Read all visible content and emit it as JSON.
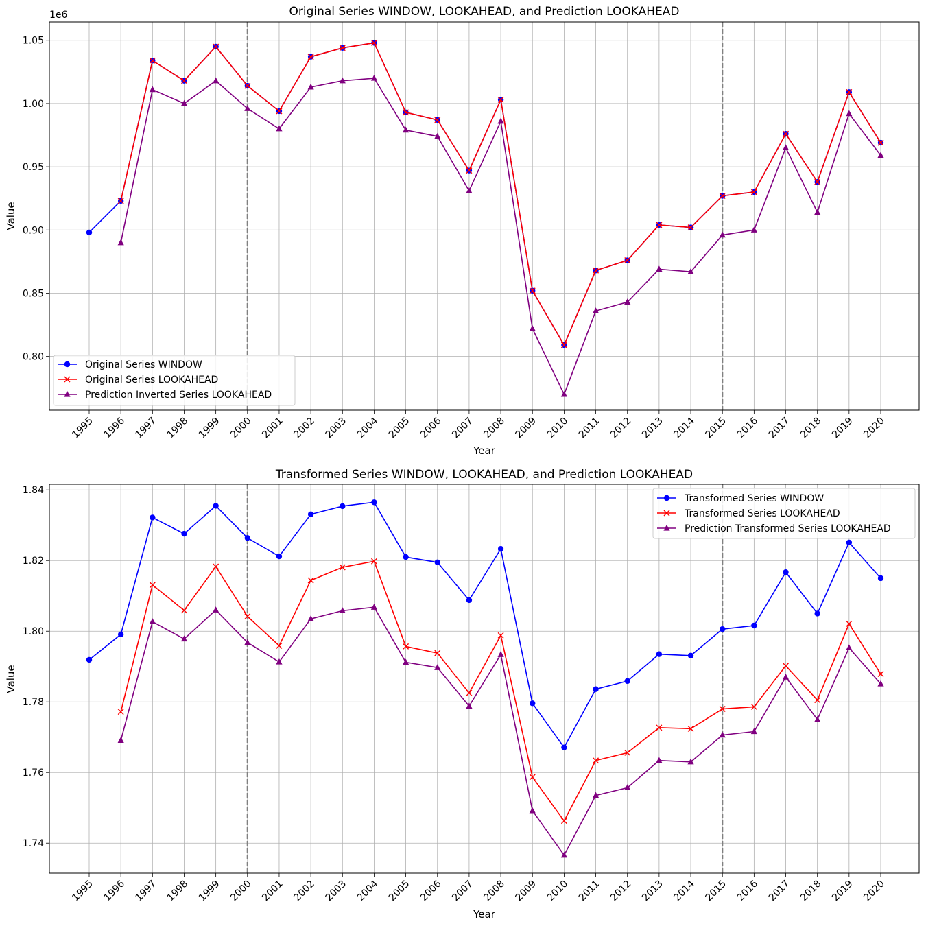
{
  "chart_data": [
    {
      "type": "line",
      "title": "Original Series WINDOW, LOOKAHEAD, and Prediction LOOKAHEAD",
      "xlabel": "Year",
      "ylabel": "Value",
      "y_offset_label": "1e6",
      "x": [
        "1995",
        "1996",
        "1997",
        "1998",
        "1999",
        "2000",
        "2001",
        "2002",
        "2003",
        "2004",
        "2005",
        "2006",
        "2007",
        "2008",
        "2009",
        "2010",
        "2011",
        "2012",
        "2013",
        "2014",
        "2015",
        "2016",
        "2017",
        "2018",
        "2019",
        "2020"
      ],
      "ylim": [
        0.7575,
        1.0645
      ],
      "yticks": [
        0.8,
        0.85,
        0.9,
        0.95,
        1.0,
        1.05
      ],
      "ytick_labels": [
        "0.80",
        "0.85",
        "0.90",
        "0.95",
        "1.00",
        "1.05"
      ],
      "vlines": [
        "2000",
        "2015"
      ],
      "grid": true,
      "legend_position": "lower-left",
      "series": [
        {
          "name": "Original Series WINDOW",
          "color": "#0000ff",
          "marker": "circle",
          "values": [
            0.898,
            0.923,
            1.034,
            1.018,
            1.045,
            1.014,
            0.994,
            1.037,
            1.044,
            1.048,
            0.993,
            0.987,
            0.947,
            1.003,
            0.852,
            0.809,
            0.868,
            0.876,
            0.904,
            0.902,
            0.927,
            0.93,
            0.976,
            0.938,
            1.009,
            0.969
          ]
        },
        {
          "name": "Original Series LOOKAHEAD",
          "color": "#ff0000",
          "marker": "x",
          "values": [
            null,
            0.923,
            1.034,
            1.018,
            1.045,
            1.014,
            0.994,
            1.037,
            1.044,
            1.048,
            0.993,
            0.987,
            0.947,
            1.003,
            0.852,
            0.809,
            0.868,
            0.876,
            0.904,
            0.902,
            0.927,
            0.93,
            0.976,
            0.938,
            1.009,
            0.969
          ]
        },
        {
          "name": "Prediction Inverted Series LOOKAHEAD",
          "color": "#800080",
          "marker": "triangle",
          "values": [
            null,
            0.89,
            1.011,
            1.0,
            1.018,
            0.996,
            0.98,
            1.013,
            1.018,
            1.02,
            0.979,
            0.974,
            0.931,
            0.986,
            0.822,
            0.77,
            0.836,
            0.843,
            0.869,
            0.867,
            0.896,
            0.9,
            0.965,
            0.914,
            0.992,
            0.959
          ]
        }
      ]
    },
    {
      "type": "line",
      "title": "Transformed Series WINDOW, LOOKAHEAD, and Prediction LOOKAHEAD",
      "xlabel": "Year",
      "ylabel": "Value",
      "y_offset_label": "",
      "x": [
        "1995",
        "1996",
        "1997",
        "1998",
        "1999",
        "2000",
        "2001",
        "2002",
        "2003",
        "2004",
        "2005",
        "2006",
        "2007",
        "2008",
        "2009",
        "2010",
        "2011",
        "2012",
        "2013",
        "2014",
        "2015",
        "2016",
        "2017",
        "2018",
        "2019",
        "2020"
      ],
      "ylim": [
        1.7315,
        1.8416
      ],
      "yticks": [
        1.74,
        1.76,
        1.78,
        1.8,
        1.82,
        1.84
      ],
      "ytick_labels": [
        "1.74",
        "1.76",
        "1.78",
        "1.80",
        "1.82",
        "1.84"
      ],
      "vlines": [
        "2000",
        "2015"
      ],
      "grid": true,
      "legend_position": "upper-right",
      "series": [
        {
          "name": "Transformed Series WINDOW",
          "color": "#0000ff",
          "marker": "circle",
          "values": [
            1.7919,
            1.7991,
            1.8322,
            1.8276,
            1.8355,
            1.8264,
            1.8212,
            1.8331,
            1.8354,
            1.8365,
            1.821,
            1.8195,
            1.8088,
            1.8233,
            1.7796,
            1.7671,
            1.7836,
            1.7859,
            1.7935,
            1.7931,
            1.8006,
            1.8016,
            1.8167,
            1.805,
            1.8251,
            1.815
          ]
        },
        {
          "name": "Transformed Series LOOKAHEAD",
          "color": "#ff0000",
          "marker": "x",
          "values": [
            null,
            1.7772,
            1.8131,
            1.8059,
            1.8183,
            1.8042,
            1.7959,
            1.8144,
            1.8181,
            1.8198,
            1.7957,
            1.7938,
            1.7825,
            1.7988,
            1.7587,
            1.7463,
            1.7634,
            1.7656,
            1.7727,
            1.7724,
            1.778,
            1.7786,
            1.7902,
            1.7805,
            1.8021,
            1.7879
          ]
        },
        {
          "name": "Prediction Transformed Series LOOKAHEAD",
          "color": "#800080",
          "marker": "triangle",
          "values": [
            null,
            1.7691,
            1.8027,
            1.7978,
            1.806,
            1.7968,
            1.7913,
            1.8035,
            1.8058,
            1.8068,
            1.7912,
            1.7897,
            1.7788,
            1.7934,
            1.7492,
            1.7366,
            1.7535,
            1.7557,
            1.7634,
            1.763,
            1.7706,
            1.7716,
            1.787,
            1.775,
            1.7953,
            1.7851
          ]
        }
      ]
    }
  ]
}
